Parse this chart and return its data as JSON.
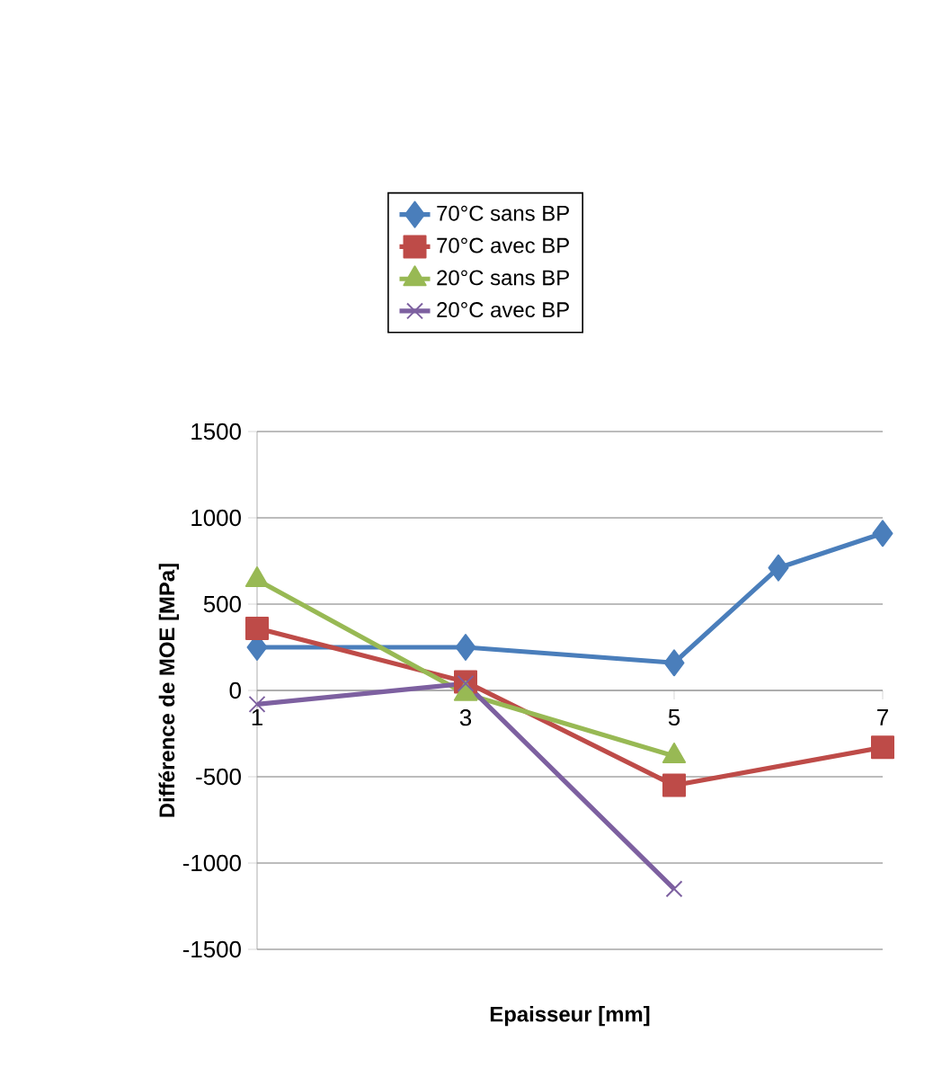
{
  "chart_data": {
    "type": "line",
    "xlabel": "Epaisseur [mm]",
    "ylabel": "Différence de MOE [MPa]",
    "xlim": [
      1,
      7
    ],
    "xticks": [
      1,
      3,
      5,
      7
    ],
    "ylim": [
      -1500,
      1500
    ],
    "yticks": [
      -1500,
      -1000,
      -500,
      0,
      500,
      1000,
      1500
    ],
    "grid": "y",
    "legend": "top",
    "series": [
      {
        "name": "70°C sans BP",
        "color": "#4a7ebb",
        "marker": "diamond",
        "x": [
          1,
          3,
          5,
          6,
          7
        ],
        "values": [
          250,
          250,
          160,
          710,
          910
        ]
      },
      {
        "name": "70°C avec BP",
        "color": "#be4b48",
        "marker": "square",
        "x": [
          1,
          3,
          5,
          7
        ],
        "values": [
          360,
          50,
          -550,
          -330
        ]
      },
      {
        "name": "20°C sans BP",
        "color": "#98b954",
        "marker": "triangle",
        "x": [
          1,
          3,
          5
        ],
        "values": [
          640,
          -20,
          -380
        ]
      },
      {
        "name": "20°C avec BP",
        "color": "#7d60a0",
        "marker": "cross",
        "x": [
          1,
          3,
          5
        ],
        "values": [
          -80,
          40,
          -1150
        ]
      }
    ]
  }
}
